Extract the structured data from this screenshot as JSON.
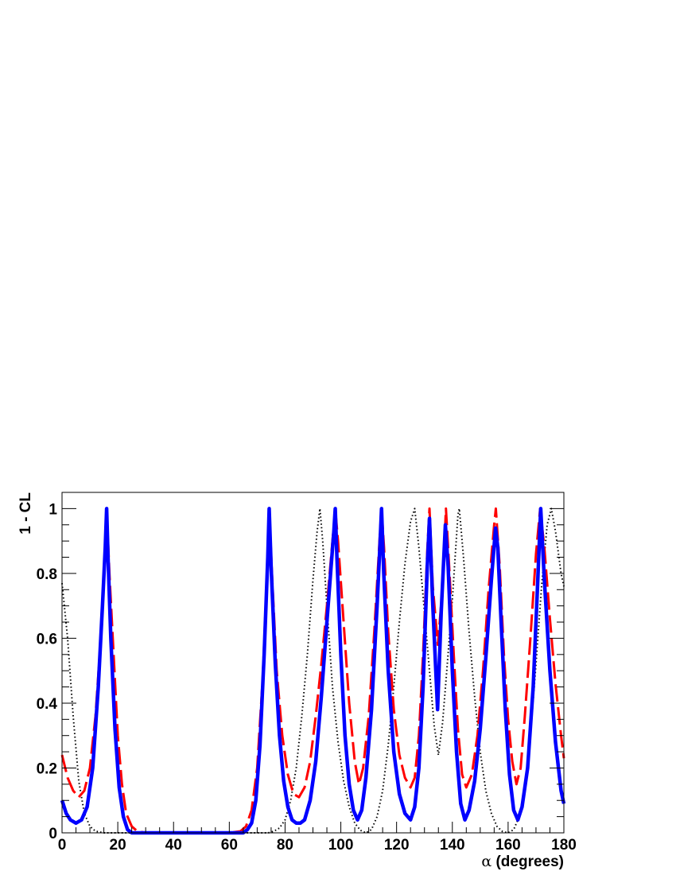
{
  "chart_data": {
    "type": "line",
    "xlabel_symbol": "α",
    "xlabel_text": " (degrees)",
    "ylabel": "1 - CL",
    "xlim": [
      0,
      180
    ],
    "ylim": [
      0,
      1.05
    ],
    "x_ticks": [
      0,
      20,
      40,
      60,
      80,
      100,
      120,
      140,
      160,
      180
    ],
    "x_tick_labels": [
      "0",
      "20",
      "40",
      "60",
      "80",
      "100",
      "120",
      "140",
      "160",
      "180"
    ],
    "y_ticks": [
      0,
      0.2,
      0.4,
      0.6,
      0.8,
      1
    ],
    "y_tick_labels": [
      "0",
      "0.2",
      "0.4",
      "0.6",
      "0.8",
      "1"
    ],
    "grid": false,
    "legend": "none",
    "series": [
      {
        "style": "dotted",
        "color": "#000000",
        "points": [
          [
            0,
            0.77
          ],
          [
            2,
            0.6
          ],
          [
            4,
            0.36
          ],
          [
            6,
            0.16
          ],
          [
            8,
            0.06
          ],
          [
            10,
            0.02
          ],
          [
            12,
            0.005
          ],
          [
            15,
            0.0
          ],
          [
            20,
            0.0
          ],
          [
            40,
            0.0
          ],
          [
            60,
            0.0
          ],
          [
            74,
            0.0
          ],
          [
            76,
            0.005
          ],
          [
            78,
            0.015
          ],
          [
            80,
            0.04
          ],
          [
            82,
            0.1
          ],
          [
            84,
            0.2
          ],
          [
            86,
            0.36
          ],
          [
            88,
            0.55
          ],
          [
            90,
            0.78
          ],
          [
            91.5,
            0.93
          ],
          [
            92.5,
            1.0
          ],
          [
            93.5,
            0.9
          ],
          [
            95,
            0.7
          ],
          [
            97,
            0.45
          ],
          [
            99,
            0.28
          ],
          [
            101,
            0.16
          ],
          [
            103,
            0.08
          ],
          [
            105,
            0.03
          ],
          [
            107,
            0.008
          ],
          [
            109,
            0.0
          ],
          [
            111,
            0.01
          ],
          [
            113,
            0.05
          ],
          [
            115,
            0.13
          ],
          [
            117,
            0.27
          ],
          [
            119,
            0.45
          ],
          [
            121,
            0.65
          ],
          [
            123,
            0.83
          ],
          [
            125,
            0.96
          ],
          [
            126.5,
            1.0
          ],
          [
            128,
            0.88
          ],
          [
            130,
            0.68
          ],
          [
            132,
            0.48
          ],
          [
            133.5,
            0.33
          ],
          [
            135,
            0.24
          ],
          [
            136.5,
            0.34
          ],
          [
            138,
            0.5
          ],
          [
            140,
            0.72
          ],
          [
            142,
            0.98
          ],
          [
            142.5,
            1.0
          ],
          [
            144,
            0.85
          ],
          [
            146,
            0.62
          ],
          [
            148,
            0.42
          ],
          [
            150,
            0.25
          ],
          [
            152,
            0.13
          ],
          [
            154,
            0.06
          ],
          [
            156,
            0.02
          ],
          [
            158,
            0.004
          ],
          [
            160,
            0.0
          ],
          [
            162,
            0.01
          ],
          [
            164,
            0.05
          ],
          [
            166,
            0.14
          ],
          [
            168,
            0.3
          ],
          [
            170,
            0.52
          ],
          [
            172,
            0.76
          ],
          [
            174,
            0.95
          ],
          [
            175.5,
            1.0
          ],
          [
            177,
            0.93
          ],
          [
            179,
            0.8
          ],
          [
            180,
            0.76
          ]
        ]
      },
      {
        "style": "dashed",
        "color": "#ff0000",
        "points": [
          [
            0,
            0.24
          ],
          [
            2,
            0.17
          ],
          [
            4,
            0.13
          ],
          [
            6,
            0.11
          ],
          [
            8,
            0.13
          ],
          [
            10,
            0.2
          ],
          [
            12,
            0.36
          ],
          [
            13.5,
            0.55
          ],
          [
            15,
            0.8
          ],
          [
            16,
            1.0
          ],
          [
            17,
            0.8
          ],
          [
            18.5,
            0.55
          ],
          [
            20,
            0.3
          ],
          [
            21.5,
            0.15
          ],
          [
            23,
            0.06
          ],
          [
            25,
            0.02
          ],
          [
            27,
            0.005
          ],
          [
            30,
            0.0
          ],
          [
            40,
            0.0
          ],
          [
            60,
            0.0
          ],
          [
            64,
            0.005
          ],
          [
            66,
            0.02
          ],
          [
            68,
            0.07
          ],
          [
            70,
            0.2
          ],
          [
            72,
            0.48
          ],
          [
            73.5,
            0.8
          ],
          [
            74.3,
            1.0
          ],
          [
            75.3,
            0.8
          ],
          [
            77,
            0.5
          ],
          [
            79,
            0.3
          ],
          [
            81,
            0.18
          ],
          [
            83,
            0.12
          ],
          [
            85,
            0.11
          ],
          [
            87,
            0.14
          ],
          [
            89,
            0.22
          ],
          [
            91,
            0.36
          ],
          [
            93,
            0.52
          ],
          [
            95,
            0.7
          ],
          [
            97,
            0.9
          ],
          [
            98,
            1.0
          ],
          [
            99,
            0.9
          ],
          [
            101,
            0.65
          ],
          [
            103,
            0.4
          ],
          [
            105,
            0.22
          ],
          [
            106.5,
            0.15
          ],
          [
            108,
            0.2
          ],
          [
            110,
            0.36
          ],
          [
            112,
            0.62
          ],
          [
            114,
            0.92
          ],
          [
            114.6,
            1.0
          ],
          [
            115.5,
            0.88
          ],
          [
            117,
            0.62
          ],
          [
            119,
            0.38
          ],
          [
            121,
            0.24
          ],
          [
            123,
            0.17
          ],
          [
            125,
            0.14
          ],
          [
            126.5,
            0.17
          ],
          [
            128,
            0.3
          ],
          [
            129.5,
            0.55
          ],
          [
            131,
            0.87
          ],
          [
            131.8,
            1.0
          ],
          [
            133,
            0.76
          ],
          [
            134.8,
            0.58
          ],
          [
            136.5,
            0.76
          ],
          [
            137.7,
            1.0
          ],
          [
            139,
            0.8
          ],
          [
            140.5,
            0.55
          ],
          [
            142,
            0.32
          ],
          [
            143.5,
            0.18
          ],
          [
            145,
            0.14
          ],
          [
            147,
            0.18
          ],
          [
            149,
            0.3
          ],
          [
            151,
            0.5
          ],
          [
            153,
            0.75
          ],
          [
            155,
            0.95
          ],
          [
            155.6,
            1.0
          ],
          [
            157,
            0.82
          ],
          [
            158.5,
            0.55
          ],
          [
            160,
            0.35
          ],
          [
            161.5,
            0.22
          ],
          [
            163,
            0.15
          ],
          [
            164.5,
            0.2
          ],
          [
            166,
            0.36
          ],
          [
            168,
            0.6
          ],
          [
            170,
            0.86
          ],
          [
            171.5,
            1.0
          ],
          [
            173,
            0.88
          ],
          [
            175,
            0.66
          ],
          [
            177,
            0.46
          ],
          [
            179,
            0.3
          ],
          [
            180,
            0.23
          ]
        ]
      },
      {
        "style": "solid",
        "color": "#0000ff",
        "points": [
          [
            0,
            0.1
          ],
          [
            1.5,
            0.06
          ],
          [
            3,
            0.04
          ],
          [
            5,
            0.03
          ],
          [
            7,
            0.04
          ],
          [
            9,
            0.08
          ],
          [
            11,
            0.2
          ],
          [
            13,
            0.45
          ],
          [
            14.5,
            0.7
          ],
          [
            15.5,
            0.88
          ],
          [
            16,
            1.0
          ],
          [
            16.5,
            0.85
          ],
          [
            17.5,
            0.6
          ],
          [
            19,
            0.32
          ],
          [
            20.5,
            0.14
          ],
          [
            22,
            0.05
          ],
          [
            23.5,
            0.01
          ],
          [
            25,
            0.0
          ],
          [
            40,
            0.0
          ],
          [
            60,
            0.0
          ],
          [
            65,
            0.0
          ],
          [
            66.5,
            0.01
          ],
          [
            68,
            0.03
          ],
          [
            69.5,
            0.1
          ],
          [
            71,
            0.27
          ],
          [
            72.5,
            0.55
          ],
          [
            73.8,
            0.85
          ],
          [
            74.3,
            1.0
          ],
          [
            75,
            0.82
          ],
          [
            76.5,
            0.52
          ],
          [
            78,
            0.3
          ],
          [
            79.5,
            0.16
          ],
          [
            81,
            0.08
          ],
          [
            82.5,
            0.04
          ],
          [
            84,
            0.03
          ],
          [
            85.5,
            0.03
          ],
          [
            87,
            0.04
          ],
          [
            89,
            0.1
          ],
          [
            91,
            0.22
          ],
          [
            93,
            0.42
          ],
          [
            95,
            0.65
          ],
          [
            96.5,
            0.82
          ],
          [
            97.5,
            0.93
          ],
          [
            98,
            1.0
          ],
          [
            98.6,
            0.85
          ],
          [
            100,
            0.55
          ],
          [
            101.5,
            0.3
          ],
          [
            103,
            0.15
          ],
          [
            104.5,
            0.07
          ],
          [
            106,
            0.04
          ],
          [
            107.5,
            0.07
          ],
          [
            109,
            0.17
          ],
          [
            111,
            0.38
          ],
          [
            113,
            0.7
          ],
          [
            114,
            0.88
          ],
          [
            114.6,
            1.0
          ],
          [
            115.4,
            0.8
          ],
          [
            117,
            0.5
          ],
          [
            119,
            0.25
          ],
          [
            121,
            0.12
          ],
          [
            123,
            0.06
          ],
          [
            125,
            0.04
          ],
          [
            126.5,
            0.08
          ],
          [
            128,
            0.2
          ],
          [
            129.5,
            0.45
          ],
          [
            131,
            0.82
          ],
          [
            131.8,
            0.97
          ],
          [
            133,
            0.7
          ],
          [
            134.7,
            0.38
          ],
          [
            136,
            0.68
          ],
          [
            137.5,
            0.95
          ],
          [
            138.5,
            0.82
          ],
          [
            140,
            0.5
          ],
          [
            141.5,
            0.25
          ],
          [
            143,
            0.09
          ],
          [
            144.5,
            0.04
          ],
          [
            146,
            0.07
          ],
          [
            148,
            0.16
          ],
          [
            150,
            0.32
          ],
          [
            152,
            0.54
          ],
          [
            154,
            0.78
          ],
          [
            155.5,
            0.94
          ],
          [
            156.3,
            0.88
          ],
          [
            157.5,
            0.65
          ],
          [
            159,
            0.38
          ],
          [
            160.5,
            0.18
          ],
          [
            162,
            0.07
          ],
          [
            163.5,
            0.04
          ],
          [
            165,
            0.08
          ],
          [
            167,
            0.2
          ],
          [
            169,
            0.45
          ],
          [
            170.5,
            0.75
          ],
          [
            171.7,
            1.0
          ],
          [
            173,
            0.78
          ],
          [
            175,
            0.5
          ],
          [
            177,
            0.28
          ],
          [
            179,
            0.13
          ],
          [
            180,
            0.09
          ]
        ]
      }
    ]
  }
}
